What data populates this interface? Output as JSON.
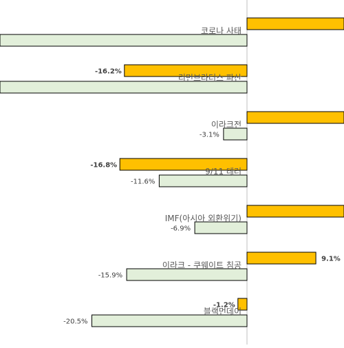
{
  "chart_data": {
    "type": "bar",
    "orientation": "horizontal",
    "grid": false,
    "legend": "none",
    "colors": {
      "series_a": "#FFC000",
      "series_b": "#E2EFDA",
      "border": "#000000",
      "axis": "#BFBFBF"
    },
    "categories": [
      "코로나 사태",
      "리먼브라더스 파산",
      "이라크전",
      "9/11 테러",
      "IMF(아시아 외환위기)",
      "이라크 - 쿠웨이트 침공",
      "블랙먼데이"
    ],
    "series": [
      {
        "values": [
          null,
          -16.2,
          null,
          -16.8,
          null,
          9.1,
          -1.2
        ],
        "labels": [
          "",
          "-16.2%",
          "",
          "-16.8%",
          "",
          "9.1%",
          "-1.2%"
        ]
      },
      {
        "values": [
          null,
          null,
          -3.1,
          -11.6,
          -6.9,
          -15.9,
          -20.5
        ],
        "labels": [
          "",
          "",
          "-3.1%",
          "-11.6%",
          "-6.9%",
          "-15.9%",
          "-20.5%"
        ]
      }
    ]
  }
}
